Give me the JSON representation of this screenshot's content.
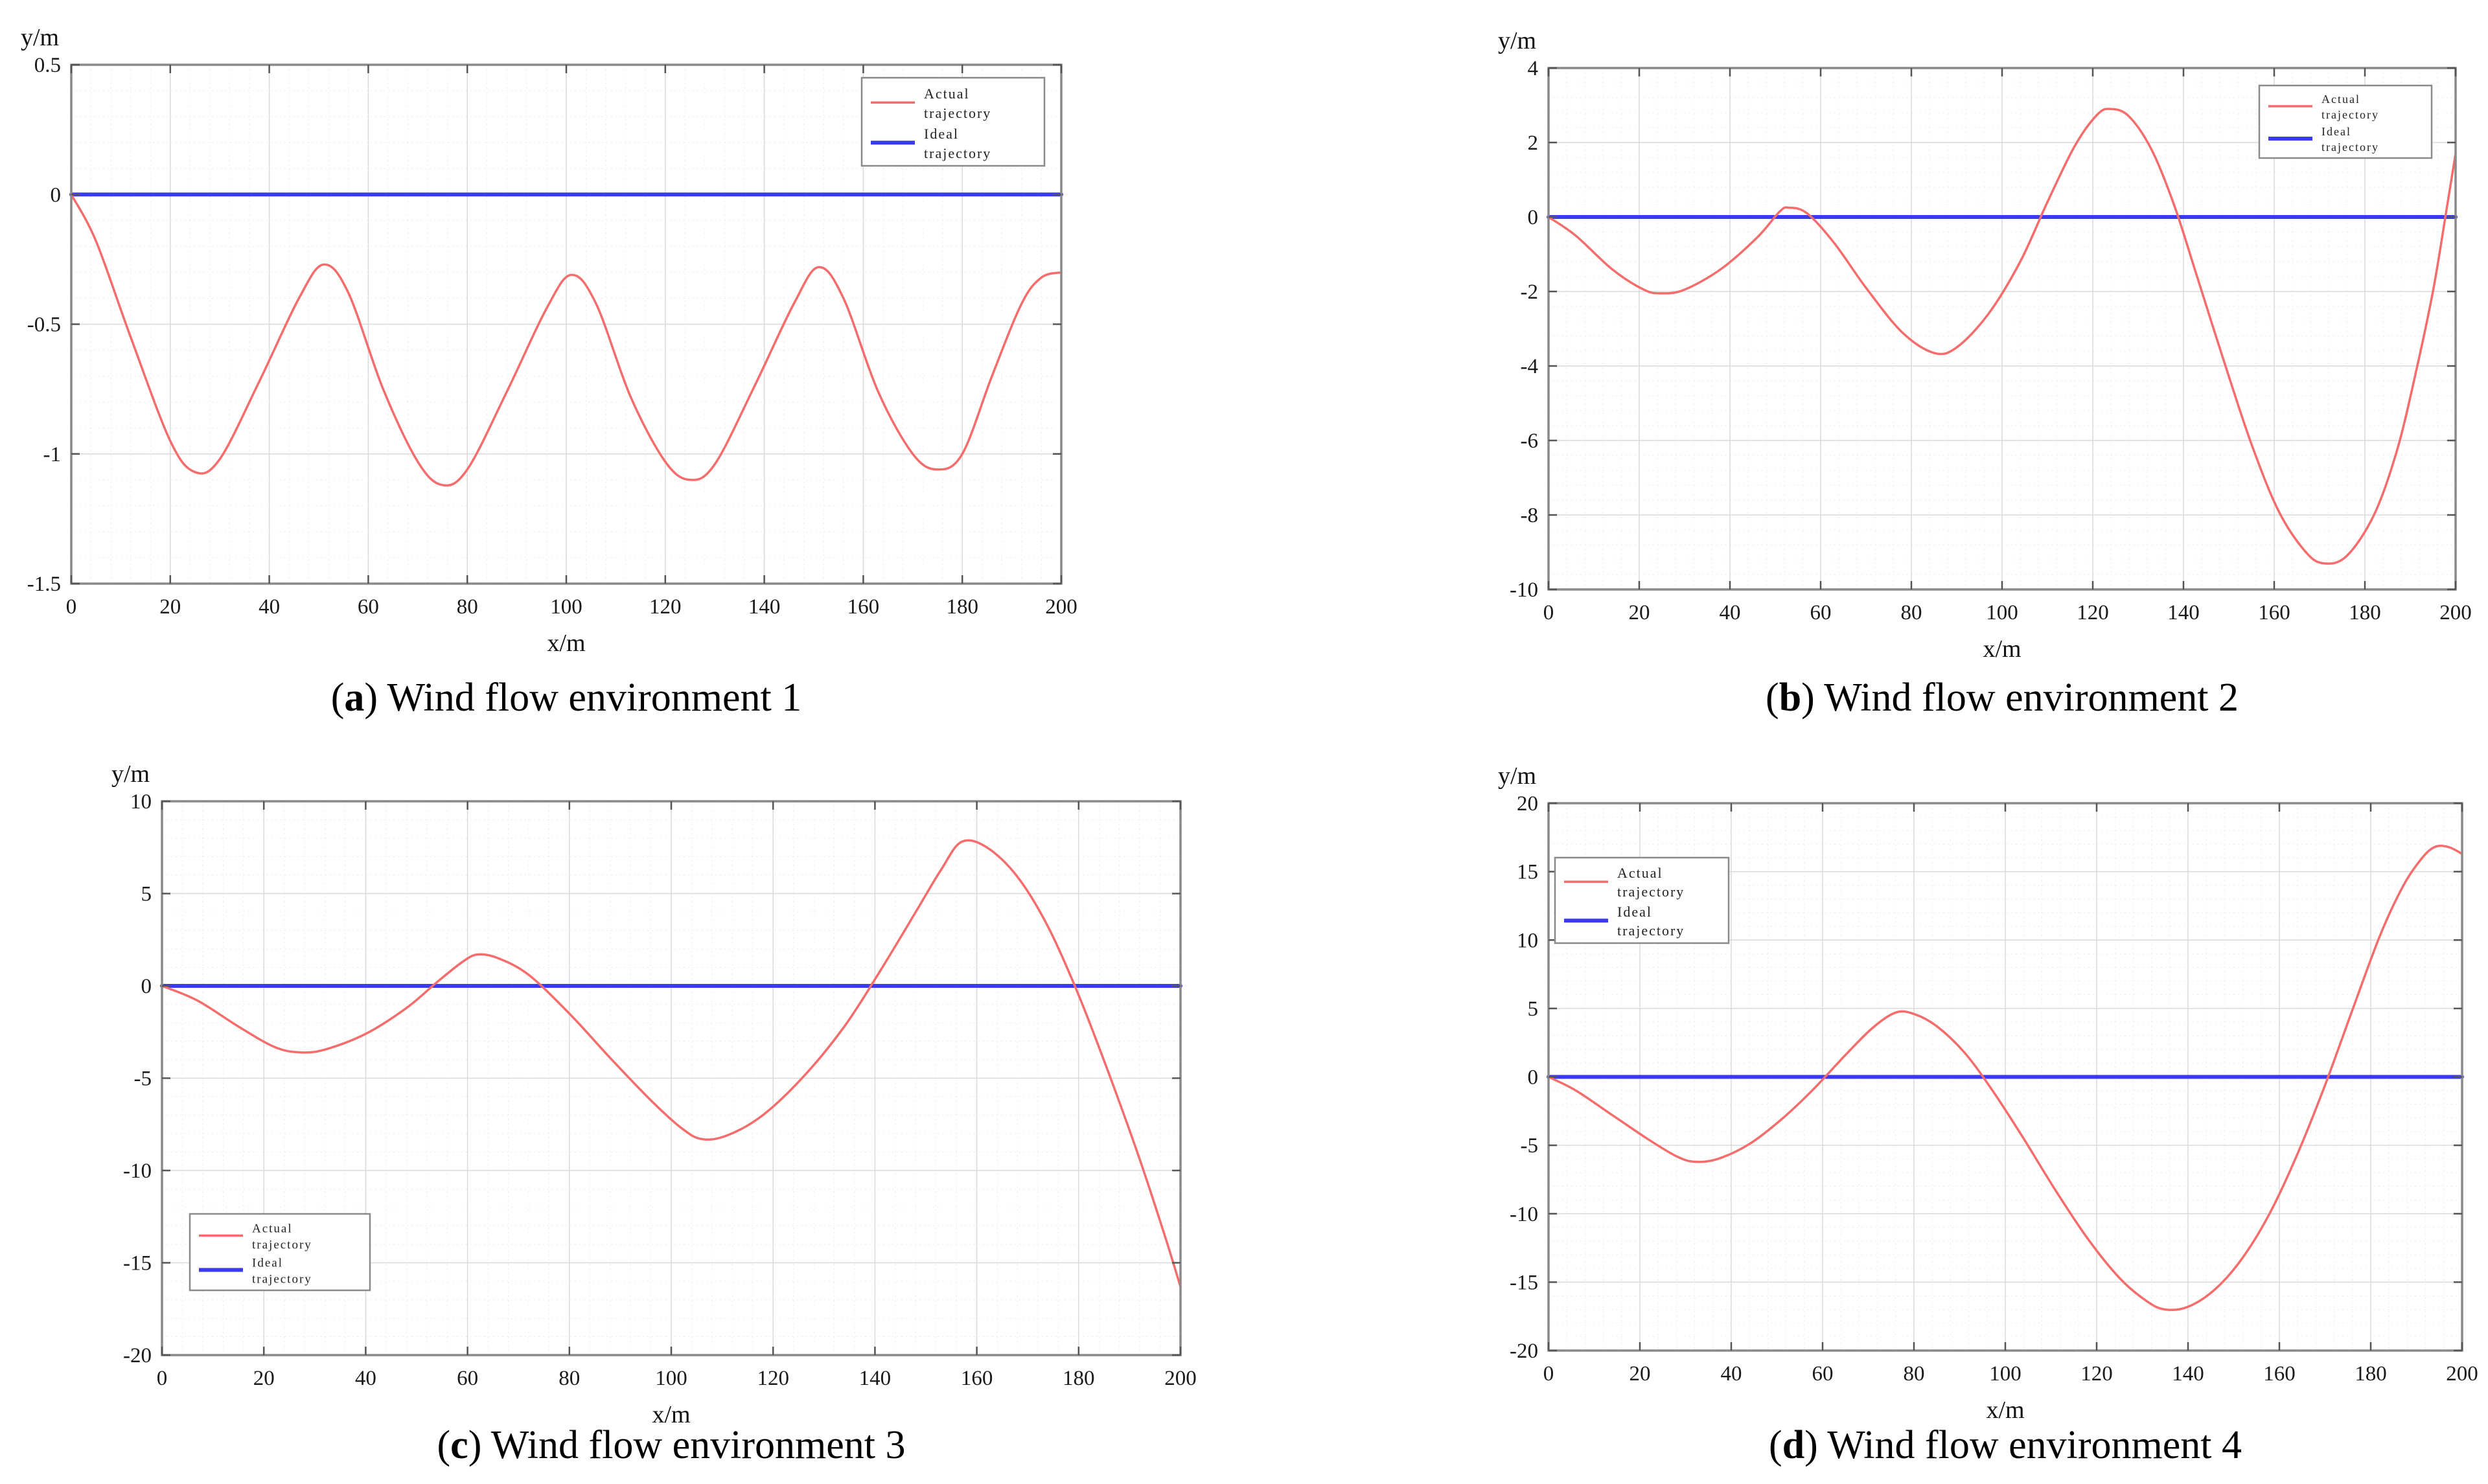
{
  "figure": {
    "description_labels": {
      "y_axis_unit": "y/m",
      "x_axis_unit": "x/m"
    },
    "colors": {
      "actual_trajectory": "#f56c6c",
      "ideal_trajectory": "#3a3af0",
      "frame": "#8a8a8a",
      "major_grid": "#dadada",
      "minor_grid": "#ebebeb"
    }
  },
  "chart_data": [
    {
      "id": "a",
      "type": "line",
      "caption": {
        "open": "(",
        "letter": "a",
        "rest": ") Wind flow environment 1"
      },
      "xlabel": "x/m",
      "ylabel": "y/m",
      "xlim": [
        0,
        200
      ],
      "ylim": [
        -1.5,
        0.5
      ],
      "xticks": [
        0,
        20,
        40,
        60,
        80,
        100,
        120,
        140,
        160,
        180,
        200
      ],
      "yticks": [
        0.5,
        0,
        -0.5,
        -1,
        -1.5
      ],
      "ytick_labels": [
        "0.5",
        "0",
        "-0.5",
        "-1",
        "-1.5"
      ],
      "x_minor_step": 4,
      "y_minor_step": 0.1,
      "grid": true,
      "legend_pos": "top-right",
      "legend": [
        "Actual trajectory",
        "Ideal trajectory"
      ],
      "series": [
        {
          "name": "Actual trajectory",
          "color": "#f56c6c",
          "width": 3.5,
          "points": [
            [
              0,
              0
            ],
            [
              5,
              -0.18
            ],
            [
              12,
              -0.55
            ],
            [
              20,
              -0.95
            ],
            [
              25,
              -1.07
            ],
            [
              30,
              -1.02
            ],
            [
              38,
              -0.72
            ],
            [
              46,
              -0.4
            ],
            [
              51,
              -0.27
            ],
            [
              56,
              -0.38
            ],
            [
              63,
              -0.75
            ],
            [
              70,
              -1.03
            ],
            [
              75,
              -1.12
            ],
            [
              80,
              -1.06
            ],
            [
              88,
              -0.76
            ],
            [
              96,
              -0.44
            ],
            [
              101,
              -0.31
            ],
            [
              106,
              -0.42
            ],
            [
              113,
              -0.78
            ],
            [
              120,
              -1.03
            ],
            [
              125,
              -1.1
            ],
            [
              130,
              -1.04
            ],
            [
              138,
              -0.74
            ],
            [
              146,
              -0.42
            ],
            [
              151,
              -0.28
            ],
            [
              156,
              -0.4
            ],
            [
              163,
              -0.76
            ],
            [
              170,
              -1.0
            ],
            [
              175,
              -1.06
            ],
            [
              180,
              -1.0
            ],
            [
              186,
              -0.7
            ],
            [
              192,
              -0.42
            ],
            [
              196,
              -0.32
            ],
            [
              200,
              -0.3
            ]
          ]
        },
        {
          "name": "Ideal trajectory",
          "color": "#3a3af0",
          "width": 6,
          "points": [
            [
              0,
              0
            ],
            [
              200,
              0
            ]
          ]
        }
      ]
    },
    {
      "id": "b",
      "type": "line",
      "caption": {
        "open": "(",
        "letter": "b",
        "rest": ") Wind flow environment 2"
      },
      "xlabel": "x/m",
      "ylabel": "y/m",
      "xlim": [
        0,
        200
      ],
      "ylim": [
        -10,
        4
      ],
      "xticks": [
        0,
        20,
        40,
        60,
        80,
        100,
        120,
        140,
        160,
        180,
        200
      ],
      "yticks": [
        4,
        2,
        0,
        -2,
        -4,
        -6,
        -8,
        -10
      ],
      "ytick_labels": [
        "4",
        "2",
        "0",
        "-2",
        "-4",
        "-6",
        "-8",
        "-10"
      ],
      "x_minor_step": 4,
      "y_minor_step": 0.4,
      "grid": true,
      "legend_pos": "top-right",
      "legend": [
        "Actual trajectory",
        "Ideal trajectory"
      ],
      "series": [
        {
          "name": "Actual trajectory",
          "color": "#f56c6c",
          "width": 3.5,
          "points": [
            [
              0,
              0
            ],
            [
              6,
              -0.5
            ],
            [
              14,
              -1.4
            ],
            [
              21,
              -1.95
            ],
            [
              25,
              -2.05
            ],
            [
              30,
              -1.95
            ],
            [
              38,
              -1.4
            ],
            [
              46,
              -0.55
            ],
            [
              51,
              0.15
            ],
            [
              53,
              0.25
            ],
            [
              57,
              0.1
            ],
            [
              63,
              -0.7
            ],
            [
              70,
              -1.9
            ],
            [
              78,
              -3.1
            ],
            [
              85,
              -3.65
            ],
            [
              90,
              -3.5
            ],
            [
              97,
              -2.6
            ],
            [
              104,
              -1.2
            ],
            [
              110,
              0.4
            ],
            [
              116,
              1.9
            ],
            [
              121,
              2.75
            ],
            [
              124,
              2.9
            ],
            [
              128,
              2.7
            ],
            [
              133,
              1.8
            ],
            [
              138,
              0.3
            ],
            [
              143,
              -1.6
            ],
            [
              149,
              -3.9
            ],
            [
              155,
              -6.1
            ],
            [
              161,
              -7.9
            ],
            [
              167,
              -9.0
            ],
            [
              171,
              -9.3
            ],
            [
              176,
              -9.1
            ],
            [
              182,
              -8.0
            ],
            [
              187,
              -6.3
            ],
            [
              191,
              -4.3
            ],
            [
              195,
              -2.0
            ],
            [
              198,
              0.2
            ],
            [
              200,
              1.7
            ]
          ]
        },
        {
          "name": "Ideal trajectory",
          "color": "#3a3af0",
          "width": 6,
          "points": [
            [
              0,
              0
            ],
            [
              200,
              0
            ]
          ]
        }
      ]
    },
    {
      "id": "c",
      "type": "line",
      "caption": {
        "open": "(",
        "letter": "c",
        "rest": ") Wind flow environment 3"
      },
      "xlabel": "x/m",
      "ylabel": "y/m",
      "xlim": [
        0,
        200
      ],
      "ylim": [
        -20,
        10
      ],
      "xticks": [
        0,
        20,
        40,
        60,
        80,
        100,
        120,
        140,
        160,
        180,
        200
      ],
      "yticks": [
        10,
        5,
        0,
        -5,
        -10,
        -15,
        -20
      ],
      "ytick_labels": [
        "10",
        "5",
        "0",
        "-5",
        "-10",
        "-15",
        "-20"
      ],
      "x_minor_step": 4,
      "y_minor_step": 1,
      "grid": true,
      "legend_pos": "bottom-left",
      "legend": [
        "Actual trajectory",
        "Ideal trajectory"
      ],
      "series": [
        {
          "name": "Actual trajectory",
          "color": "#f56c6c",
          "width": 3.5,
          "points": [
            [
              0,
              0
            ],
            [
              7,
              -0.8
            ],
            [
              15,
              -2.2
            ],
            [
              22,
              -3.3
            ],
            [
              27,
              -3.6
            ],
            [
              32,
              -3.45
            ],
            [
              40,
              -2.6
            ],
            [
              48,
              -1.2
            ],
            [
              54,
              0.2
            ],
            [
              59,
              1.3
            ],
            [
              62,
              1.7
            ],
            [
              66,
              1.5
            ],
            [
              72,
              0.6
            ],
            [
              80,
              -1.5
            ],
            [
              88,
              -3.9
            ],
            [
              96,
              -6.2
            ],
            [
              102,
              -7.7
            ],
            [
              106,
              -8.3
            ],
            [
              111,
              -8.1
            ],
            [
              118,
              -7.0
            ],
            [
              126,
              -4.9
            ],
            [
              134,
              -2.2
            ],
            [
              141,
              0.8
            ],
            [
              148,
              4.0
            ],
            [
              153,
              6.3
            ],
            [
              157,
              7.8
            ],
            [
              162,
              7.5
            ],
            [
              168,
              5.9
            ],
            [
              174,
              3.2
            ],
            [
              180,
              -0.5
            ],
            [
              186,
              -4.8
            ],
            [
              192,
              -9.4
            ],
            [
              197,
              -13.6
            ],
            [
              200,
              -16.3
            ]
          ]
        },
        {
          "name": "Ideal trajectory",
          "color": "#3a3af0",
          "width": 6,
          "points": [
            [
              0,
              0
            ],
            [
              200,
              0
            ]
          ]
        }
      ]
    },
    {
      "id": "d",
      "type": "line",
      "caption": {
        "open": "(",
        "letter": "d",
        "rest": ") Wind flow environment 4"
      },
      "xlabel": "x/m",
      "ylabel": "y/m",
      "xlim": [
        0,
        200
      ],
      "ylim": [
        -20,
        20
      ],
      "xticks": [
        0,
        20,
        40,
        60,
        80,
        100,
        120,
        140,
        160,
        180,
        200
      ],
      "yticks": [
        20,
        15,
        10,
        5,
        0,
        -5,
        -10,
        -15,
        -20
      ],
      "ytick_labels": [
        "20",
        "15",
        "10",
        "5",
        "0",
        "-5",
        "-10",
        "-15",
        "-20"
      ],
      "x_minor_step": 4,
      "y_minor_step": 1,
      "grid": true,
      "legend_pos": "top-left",
      "legend": [
        "Actual trajectory",
        "Ideal trajectory"
      ],
      "series": [
        {
          "name": "Actual trajectory",
          "color": "#f56c6c",
          "width": 3.5,
          "points": [
            [
              0,
              0
            ],
            [
              6,
              -1.0
            ],
            [
              14,
              -2.8
            ],
            [
              22,
              -4.6
            ],
            [
              28,
              -5.8
            ],
            [
              32,
              -6.2
            ],
            [
              37,
              -6.0
            ],
            [
              44,
              -4.9
            ],
            [
              51,
              -3.1
            ],
            [
              58,
              -0.9
            ],
            [
              65,
              1.6
            ],
            [
              71,
              3.6
            ],
            [
              76,
              4.7
            ],
            [
              80,
              4.6
            ],
            [
              85,
              3.7
            ],
            [
              91,
              1.8
            ],
            [
              97,
              -0.9
            ],
            [
              104,
              -4.5
            ],
            [
              111,
              -8.3
            ],
            [
              118,
              -11.8
            ],
            [
              125,
              -14.7
            ],
            [
              131,
              -16.4
            ],
            [
              135,
              -17.0
            ],
            [
              140,
              -16.8
            ],
            [
              146,
              -15.5
            ],
            [
              152,
              -13.2
            ],
            [
              158,
              -9.9
            ],
            [
              164,
              -5.6
            ],
            [
              170,
              -0.6
            ],
            [
              176,
              4.9
            ],
            [
              182,
              10.3
            ],
            [
              187,
              13.9
            ],
            [
              191,
              15.9
            ],
            [
              194,
              16.8
            ],
            [
              197,
              16.8
            ],
            [
              200,
              16.3
            ]
          ]
        },
        {
          "name": "Ideal trajectory",
          "color": "#3a3af0",
          "width": 6,
          "points": [
            [
              0,
              0
            ],
            [
              200,
              0
            ]
          ]
        }
      ]
    }
  ]
}
